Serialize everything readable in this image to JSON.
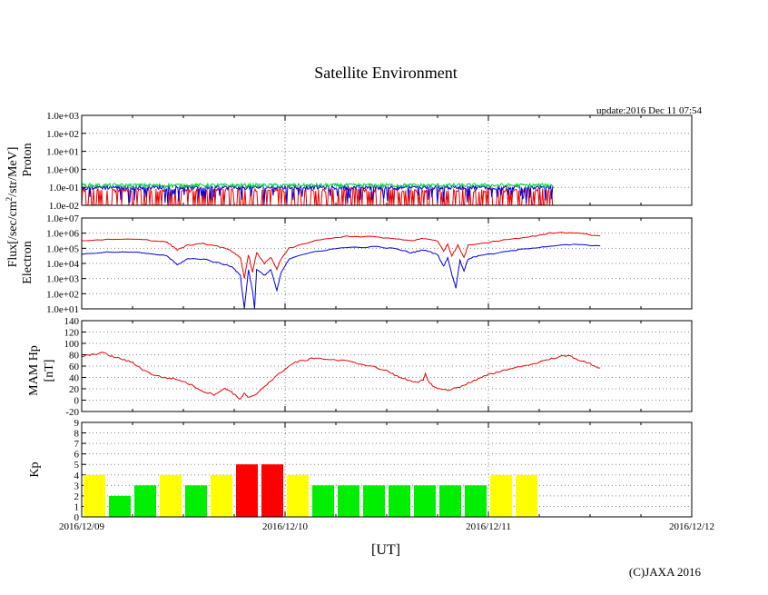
{
  "title": "Satellite Environment",
  "update": "update:2016 Dec 11 07:54",
  "copyright": "(C)JAXA 2016",
  "xlabel": "[UT]",
  "x_ticks": [
    "2016/12/09",
    "2016/12/10",
    "2016/12/11",
    "2016/12/12"
  ],
  "ylabel_flux_part1": "Flux[/sec/cm",
  "ylabel_flux_sup": "2",
  "ylabel_flux_part2": "/str/MeV]",
  "colors": {
    "red": "#ee0000",
    "blue": "#0000dd",
    "green": "#00cc33",
    "kp_yellow": "#ffff00",
    "kp_green": "#00ee00",
    "kp_red": "#ff0000",
    "grid": "#888888"
  },
  "chart_data": [
    {
      "type": "line",
      "name": "proton",
      "ylabel": "Proton",
      "yscale": "log",
      "ylim_exp": [
        -2,
        3
      ],
      "ytick_labels": [
        "1.0e-02",
        "1.0e-01",
        "1.0e+00",
        "1.0e+01",
        "1.0e+02",
        "1.0e+03"
      ],
      "xlim_days": [
        0,
        3
      ],
      "data_end_day": 2.32,
      "series": [
        {
          "name": "green",
          "color": "#00cc33",
          "level": 0.13
        },
        {
          "name": "blue",
          "color": "#0000dd",
          "level": 0.1
        },
        {
          "name": "red",
          "color": "#ee0000",
          "level": 0.07
        }
      ]
    },
    {
      "type": "line",
      "name": "electron",
      "ylabel": "Electron",
      "yscale": "log",
      "ylim_exp": [
        1,
        7
      ],
      "ytick_labels": [
        "1.0e+01",
        "1.0e+02",
        "1.0e+03",
        "1.0e+04",
        "1.0e+05",
        "1.0e+06",
        "1.0e+07"
      ],
      "xlim_days": [
        0,
        3
      ],
      "series": [
        {
          "name": "red",
          "color": "#ee0000",
          "points": [
            [
              0,
              5.5
            ],
            [
              0.15,
              5.6
            ],
            [
              0.3,
              5.6
            ],
            [
              0.42,
              5.4
            ],
            [
              0.47,
              4.9
            ],
            [
              0.52,
              5.2
            ],
            [
              0.6,
              5.3
            ],
            [
              0.68,
              5.1
            ],
            [
              0.74,
              4.8
            ],
            [
              0.78,
              4.4
            ],
            [
              0.8,
              3.0
            ],
            [
              0.82,
              4.6
            ],
            [
              0.84,
              3.4
            ],
            [
              0.86,
              4.7
            ],
            [
              0.9,
              4.0
            ],
            [
              0.93,
              4.4
            ],
            [
              0.96,
              3.6
            ],
            [
              0.98,
              4.3
            ],
            [
              1.02,
              5.0
            ],
            [
              1.15,
              5.5
            ],
            [
              1.3,
              5.8
            ],
            [
              1.45,
              5.75
            ],
            [
              1.55,
              5.6
            ],
            [
              1.62,
              5.5
            ],
            [
              1.68,
              5.65
            ],
            [
              1.75,
              5.5
            ],
            [
              1.78,
              4.8
            ],
            [
              1.8,
              5.3
            ],
            [
              1.82,
              4.5
            ],
            [
              1.85,
              5.2
            ],
            [
              1.88,
              4.4
            ],
            [
              1.9,
              5.2
            ],
            [
              1.95,
              5.3
            ],
            [
              2.1,
              5.6
            ],
            [
              2.2,
              5.75
            ],
            [
              2.3,
              6.0
            ],
            [
              2.42,
              6.05
            ],
            [
              2.55,
              5.8
            ]
          ]
        },
        {
          "name": "blue",
          "color": "#0000dd",
          "points": [
            [
              0,
              4.6
            ],
            [
              0.15,
              4.75
            ],
            [
              0.3,
              4.7
            ],
            [
              0.42,
              4.5
            ],
            [
              0.47,
              3.9
            ],
            [
              0.52,
              4.3
            ],
            [
              0.6,
              4.3
            ],
            [
              0.68,
              4.0
            ],
            [
              0.74,
              3.8
            ],
            [
              0.78,
              3.2
            ],
            [
              0.8,
              1.0
            ],
            [
              0.82,
              3.6
            ],
            [
              0.84,
              2.2
            ],
            [
              0.85,
              1.0
            ],
            [
              0.86,
              3.6
            ],
            [
              0.9,
              3.2
            ],
            [
              0.93,
              3.6
            ],
            [
              0.96,
              2.2
            ],
            [
              0.98,
              3.4
            ],
            [
              1.02,
              4.3
            ],
            [
              1.15,
              4.8
            ],
            [
              1.3,
              5.05
            ],
            [
              1.45,
              5.1
            ],
            [
              1.55,
              4.95
            ],
            [
              1.62,
              4.7
            ],
            [
              1.68,
              4.9
            ],
            [
              1.75,
              4.6
            ],
            [
              1.78,
              3.8
            ],
            [
              1.8,
              4.4
            ],
            [
              1.82,
              3.3
            ],
            [
              1.84,
              2.4
            ],
            [
              1.86,
              4.2
            ],
            [
              1.88,
              3.5
            ],
            [
              1.9,
              4.3
            ],
            [
              1.95,
              4.5
            ],
            [
              2.1,
              4.8
            ],
            [
              2.2,
              5.0
            ],
            [
              2.3,
              5.15
            ],
            [
              2.42,
              5.25
            ],
            [
              2.55,
              5.15
            ]
          ]
        }
      ]
    },
    {
      "type": "line",
      "name": "magnetic",
      "ylabel": "MAM Hp",
      "ylabel2": "[nT]",
      "ylim": [
        -20,
        140
      ],
      "ytick_labels": [
        "-20",
        "0",
        "20",
        "40",
        "60",
        "80",
        "100",
        "120",
        "140"
      ],
      "xlim_days": [
        0,
        3
      ],
      "series": [
        {
          "name": "Hp",
          "color": "#ee0000",
          "points": [
            [
              0,
              77
            ],
            [
              0.05,
              80
            ],
            [
              0.1,
              84
            ],
            [
              0.15,
              77
            ],
            [
              0.2,
              72
            ],
            [
              0.25,
              66
            ],
            [
              0.3,
              54
            ],
            [
              0.35,
              45
            ],
            [
              0.4,
              40
            ],
            [
              0.45,
              38
            ],
            [
              0.5,
              33
            ],
            [
              0.55,
              25
            ],
            [
              0.6,
              15
            ],
            [
              0.65,
              10
            ],
            [
              0.7,
              20
            ],
            [
              0.73,
              17
            ],
            [
              0.75,
              10
            ],
            [
              0.78,
              2
            ],
            [
              0.8,
              12
            ],
            [
              0.82,
              4
            ],
            [
              0.85,
              8
            ],
            [
              0.9,
              25
            ],
            [
              0.95,
              40
            ],
            [
              1.0,
              55
            ],
            [
              1.05,
              67
            ],
            [
              1.1,
              70
            ],
            [
              1.15,
              75
            ],
            [
              1.2,
              72
            ],
            [
              1.3,
              69
            ],
            [
              1.4,
              62
            ],
            [
              1.5,
              52
            ],
            [
              1.55,
              42
            ],
            [
              1.6,
              36
            ],
            [
              1.65,
              32
            ],
            [
              1.68,
              35
            ],
            [
              1.69,
              46
            ],
            [
              1.71,
              30
            ],
            [
              1.75,
              20
            ],
            [
              1.8,
              18
            ],
            [
              1.85,
              22
            ],
            [
              1.9,
              30
            ],
            [
              1.95,
              37
            ],
            [
              2.0,
              45
            ],
            [
              2.05,
              50
            ],
            [
              2.1,
              55
            ],
            [
              2.2,
              62
            ],
            [
              2.3,
              72
            ],
            [
              2.35,
              77
            ],
            [
              2.4,
              78
            ],
            [
              2.45,
              70
            ],
            [
              2.5,
              64
            ],
            [
              2.55,
              56
            ]
          ]
        }
      ]
    },
    {
      "type": "bar",
      "name": "kp",
      "ylabel": "Kp",
      "ylim": [
        0,
        9
      ],
      "ytick_labels": [
        "0",
        "1",
        "2",
        "3",
        "4",
        "5",
        "6",
        "7",
        "8",
        "9"
      ],
      "xlim_days": [
        0,
        3
      ],
      "bar_interval_hours": 3,
      "values": [
        4,
        2,
        3,
        4,
        3,
        4,
        5,
        5,
        4,
        3,
        3,
        3,
        3,
        3,
        3,
        3,
        4,
        4
      ]
    }
  ]
}
